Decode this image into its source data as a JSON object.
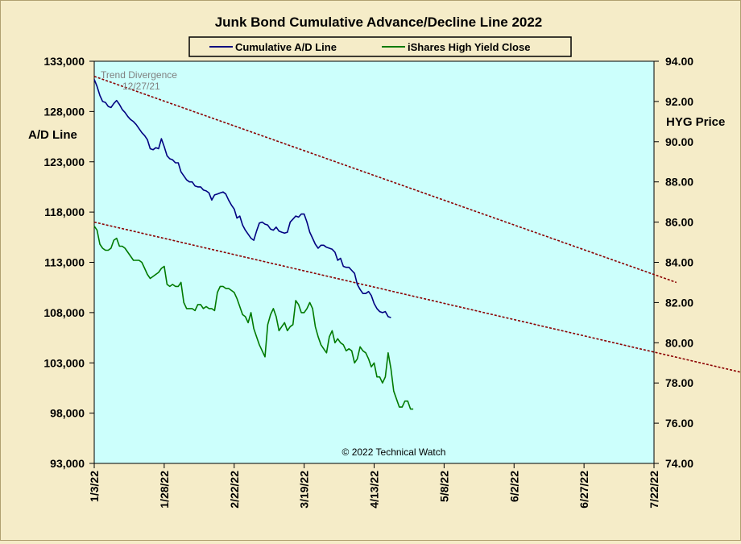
{
  "chart_data": {
    "type": "line",
    "title": "Junk Bond Cumulative  Advance/Decline  Line  2022",
    "ylabel_left": "A/D Line",
    "ylabel_right": "HYG Price",
    "legend_position": "top",
    "annotation_text": "Trend Divergence",
    "annotation_date": "12/27/21",
    "copyright": "© 2022 Technical Watch",
    "plot_background": "#ccfffc",
    "page_background": "#f5ecc8",
    "x_ticks": [
      "1/3/22",
      "1/28/22",
      "2/22/22",
      "3/19/22",
      "4/13/22",
      "5/8/22",
      "6/2/22",
      "6/27/22",
      "7/22/22"
    ],
    "x_range": [
      "2022-01-03",
      "2022-07-22"
    ],
    "y_left": {
      "min": 93000,
      "max": 133000,
      "ticks": [
        "93,000",
        "98,000",
        "103,000",
        "108,000",
        "113,000",
        "118,000",
        "123,000",
        "128,000",
        "133,000"
      ]
    },
    "y_right": {
      "min": 74.0,
      "max": 94.0,
      "ticks": [
        "74.00",
        "76.00",
        "78.00",
        "80.00",
        "82.00",
        "84.00",
        "86.00",
        "88.00",
        "90.00",
        "92.00",
        "94.00"
      ]
    },
    "series": [
      {
        "name": "Cumulative A/D Line",
        "axis": "left",
        "color": "#000080",
        "points": [
          [
            0,
            131200
          ],
          [
            1,
            130500
          ],
          [
            2,
            129600
          ],
          [
            3,
            129000
          ],
          [
            4,
            128900
          ],
          [
            5,
            128500
          ],
          [
            6,
            128400
          ],
          [
            7,
            128800
          ],
          [
            8,
            129100
          ],
          [
            9,
            128700
          ],
          [
            10,
            128200
          ],
          [
            11,
            127900
          ],
          [
            12,
            127500
          ],
          [
            13,
            127200
          ],
          [
            14,
            127000
          ],
          [
            15,
            126700
          ],
          [
            16,
            126300
          ],
          [
            17,
            125900
          ],
          [
            18,
            125600
          ],
          [
            19,
            125200
          ],
          [
            20,
            124300
          ],
          [
            21,
            124200
          ],
          [
            22,
            124400
          ],
          [
            23,
            124300
          ],
          [
            24,
            125300
          ],
          [
            25,
            124500
          ],
          [
            26,
            123600
          ],
          [
            27,
            123300
          ],
          [
            28,
            123200
          ],
          [
            29,
            122900
          ],
          [
            30,
            122900
          ],
          [
            31,
            122000
          ],
          [
            32,
            121600
          ],
          [
            33,
            121200
          ],
          [
            34,
            121000
          ],
          [
            35,
            121000
          ],
          [
            36,
            120600
          ],
          [
            37,
            120500
          ],
          [
            38,
            120500
          ],
          [
            39,
            120200
          ],
          [
            40,
            120100
          ],
          [
            41,
            119900
          ],
          [
            42,
            119200
          ],
          [
            43,
            119700
          ],
          [
            44,
            119800
          ],
          [
            45,
            119900
          ],
          [
            46,
            120000
          ],
          [
            47,
            119800
          ],
          [
            48,
            119200
          ],
          [
            49,
            118700
          ],
          [
            50,
            118300
          ],
          [
            51,
            117400
          ],
          [
            52,
            117600
          ],
          [
            53,
            116700
          ],
          [
            54,
            116200
          ],
          [
            55,
            115800
          ],
          [
            56,
            115400
          ],
          [
            57,
            115200
          ],
          [
            58,
            116100
          ],
          [
            59,
            116900
          ],
          [
            60,
            117000
          ],
          [
            61,
            116800
          ],
          [
            62,
            116700
          ],
          [
            63,
            116300
          ],
          [
            64,
            116200
          ],
          [
            65,
            116500
          ],
          [
            66,
            116100
          ],
          [
            67,
            116000
          ],
          [
            68,
            115900
          ],
          [
            69,
            116000
          ],
          [
            70,
            117000
          ],
          [
            71,
            117300
          ],
          [
            72,
            117600
          ],
          [
            73,
            117500
          ],
          [
            74,
            117800
          ],
          [
            75,
            117800
          ],
          [
            76,
            117000
          ],
          [
            77,
            116000
          ],
          [
            78,
            115400
          ],
          [
            79,
            114800
          ],
          [
            80,
            114400
          ],
          [
            81,
            114700
          ],
          [
            82,
            114700
          ],
          [
            83,
            114500
          ],
          [
            84,
            114400
          ],
          [
            85,
            114300
          ],
          [
            86,
            114000
          ],
          [
            87,
            113200
          ],
          [
            88,
            113400
          ],
          [
            89,
            112600
          ],
          [
            90,
            112500
          ],
          [
            91,
            112500
          ],
          [
            92,
            112200
          ],
          [
            93,
            111900
          ],
          [
            94,
            110800
          ],
          [
            95,
            110300
          ],
          [
            96,
            109900
          ],
          [
            97,
            109900
          ],
          [
            98,
            110100
          ],
          [
            99,
            109700
          ],
          [
            100,
            108900
          ],
          [
            101,
            108400
          ],
          [
            102,
            108100
          ],
          [
            103,
            108000
          ],
          [
            104,
            108100
          ],
          [
            105,
            107600
          ],
          [
            106,
            107500
          ]
        ]
      },
      {
        "name": "iShares High Yield Close",
        "axis": "right",
        "color": "#007a00",
        "points": [
          [
            0,
            85.8
          ],
          [
            1,
            85.6
          ],
          [
            2,
            84.9
          ],
          [
            3,
            84.7
          ],
          [
            4,
            84.6
          ],
          [
            5,
            84.6
          ],
          [
            6,
            84.7
          ],
          [
            7,
            85.1
          ],
          [
            8,
            85.2
          ],
          [
            9,
            84.8
          ],
          [
            10,
            84.8
          ],
          [
            11,
            84.7
          ],
          [
            12,
            84.5
          ],
          [
            13,
            84.3
          ],
          [
            14,
            84.1
          ],
          [
            15,
            84.1
          ],
          [
            16,
            84.1
          ],
          [
            17,
            84.0
          ],
          [
            18,
            83.7
          ],
          [
            19,
            83.4
          ],
          [
            20,
            83.2
          ],
          [
            21,
            83.3
          ],
          [
            22,
            83.4
          ],
          [
            23,
            83.5
          ],
          [
            24,
            83.7
          ],
          [
            25,
            83.8
          ],
          [
            26,
            82.9
          ],
          [
            27,
            82.8
          ],
          [
            28,
            82.9
          ],
          [
            29,
            82.8
          ],
          [
            30,
            82.8
          ],
          [
            31,
            83.0
          ],
          [
            32,
            82.0
          ],
          [
            33,
            81.7
          ],
          [
            34,
            81.7
          ],
          [
            35,
            81.7
          ],
          [
            36,
            81.6
          ],
          [
            37,
            81.9
          ],
          [
            38,
            81.9
          ],
          [
            39,
            81.7
          ],
          [
            40,
            81.8
          ],
          [
            41,
            81.7
          ],
          [
            42,
            81.7
          ],
          [
            43,
            81.6
          ],
          [
            44,
            82.5
          ],
          [
            45,
            82.8
          ],
          [
            46,
            82.8
          ],
          [
            47,
            82.7
          ],
          [
            48,
            82.7
          ],
          [
            49,
            82.6
          ],
          [
            50,
            82.5
          ],
          [
            51,
            82.2
          ],
          [
            52,
            81.8
          ],
          [
            53,
            81.4
          ],
          [
            54,
            81.3
          ],
          [
            55,
            81.0
          ],
          [
            56,
            81.5
          ],
          [
            57,
            80.7
          ],
          [
            58,
            80.3
          ],
          [
            59,
            79.9
          ],
          [
            60,
            79.6
          ],
          [
            61,
            79.3
          ],
          [
            62,
            80.9
          ],
          [
            63,
            81.4
          ],
          [
            64,
            81.7
          ],
          [
            65,
            81.3
          ],
          [
            66,
            80.6
          ],
          [
            67,
            80.8
          ],
          [
            68,
            81.0
          ],
          [
            69,
            80.6
          ],
          [
            70,
            80.8
          ],
          [
            71,
            80.9
          ],
          [
            72,
            82.1
          ],
          [
            73,
            81.9
          ],
          [
            74,
            81.5
          ],
          [
            75,
            81.5
          ],
          [
            76,
            81.7
          ],
          [
            77,
            82.0
          ],
          [
            78,
            81.7
          ],
          [
            79,
            80.8
          ],
          [
            80,
            80.3
          ],
          [
            81,
            79.9
          ],
          [
            82,
            79.7
          ],
          [
            83,
            79.5
          ],
          [
            84,
            80.3
          ],
          [
            85,
            80.6
          ],
          [
            86,
            80.0
          ],
          [
            87,
            80.2
          ],
          [
            88,
            80.0
          ],
          [
            89,
            79.9
          ],
          [
            90,
            79.6
          ],
          [
            91,
            79.7
          ],
          [
            92,
            79.6
          ],
          [
            93,
            79.0
          ],
          [
            94,
            79.2
          ],
          [
            95,
            79.8
          ],
          [
            96,
            79.6
          ],
          [
            97,
            79.5
          ],
          [
            98,
            79.2
          ],
          [
            99,
            78.8
          ],
          [
            100,
            79.0
          ],
          [
            101,
            78.3
          ],
          [
            102,
            78.3
          ],
          [
            103,
            78.0
          ],
          [
            104,
            78.3
          ],
          [
            105,
            79.5
          ],
          [
            106,
            78.7
          ],
          [
            107,
            77.6
          ],
          [
            108,
            77.2
          ],
          [
            109,
            76.8
          ],
          [
            110,
            76.8
          ],
          [
            111,
            77.1
          ],
          [
            112,
            77.1
          ],
          [
            113,
            76.7
          ],
          [
            114,
            76.7
          ]
        ]
      }
    ],
    "trendlines": [
      {
        "axis": "left",
        "color": "#8b0000",
        "from": [
          0,
          131500
        ],
        "to": [
          208,
          111000
        ]
      },
      {
        "axis": "left",
        "color": "#8b0000",
        "from": [
          0,
          117000
        ],
        "to": [
          294,
          98000
        ]
      }
    ]
  }
}
